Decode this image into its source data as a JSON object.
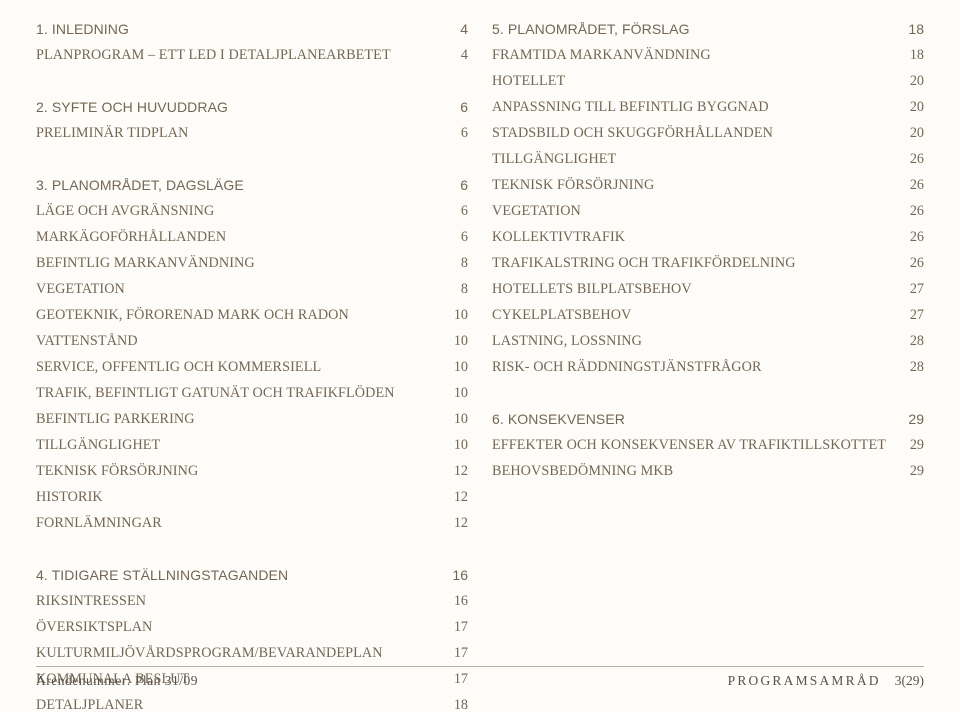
{
  "left_column": [
    {
      "type": "head",
      "label": "1. INLEDNING",
      "page": "4"
    },
    {
      "type": "entry",
      "label": "PLANPROGRAM – ETT LED I DETALJPLANEARBETET",
      "page": "4"
    },
    {
      "type": "gap"
    },
    {
      "type": "head",
      "label": "2. SYFTE OCH HUVUDDRAG",
      "page": "6"
    },
    {
      "type": "entry",
      "label": "PRELIMINÄR TIDPLAN",
      "page": "6"
    },
    {
      "type": "gap"
    },
    {
      "type": "head",
      "label": "3. PLANOMRÅDET, DAGSLÄGE",
      "page": "6"
    },
    {
      "type": "entry",
      "label": "LÄGE OCH AVGRÄNSNING",
      "page": "6"
    },
    {
      "type": "entry",
      "label": "MARKÄGOFÖRHÅLLANDEN",
      "page": "6"
    },
    {
      "type": "entry",
      "label": "BEFINTLIG MARKANVÄNDNING",
      "page": "8"
    },
    {
      "type": "entry",
      "label": "VEGETATION",
      "page": "8"
    },
    {
      "type": "entry",
      "label": "GEOTEKNIK, FÖRORENAD MARK OCH RADON",
      "page": "10"
    },
    {
      "type": "entry",
      "label": "VATTENSTÅND",
      "page": "10"
    },
    {
      "type": "entry",
      "label": "SERVICE, OFFENTLIG OCH KOMMERSIELL",
      "page": "10"
    },
    {
      "type": "entry",
      "label": "TRAFIK, BEFINTLIGT GATUNÄT OCH TRAFIKFLÖDEN",
      "page": "10"
    },
    {
      "type": "entry",
      "label": "BEFINTLIG PARKERING",
      "page": "10"
    },
    {
      "type": "entry",
      "label": "TILLGÄNGLIGHET",
      "page": "10"
    },
    {
      "type": "entry",
      "label": "TEKNISK FÖRSÖRJNING",
      "page": "12"
    },
    {
      "type": "entry",
      "label": "HISTORIK",
      "page": "12"
    },
    {
      "type": "entry",
      "label": "FORNLÄMNINGAR",
      "page": "12"
    },
    {
      "type": "gap"
    },
    {
      "type": "head",
      "label": "4. TIDIGARE STÄLLNINGSTAGANDEN",
      "page": "16"
    },
    {
      "type": "entry",
      "label": "RIKSINTRESSEN",
      "page": "16"
    },
    {
      "type": "entry",
      "label": "ÖVERSIKTSPLAN",
      "page": "17"
    },
    {
      "type": "entry",
      "label": "KULTURMILJÖVÅRDSPROGRAM/BEVARANDEPLAN",
      "page": "17"
    },
    {
      "type": "entry",
      "label": "KOMMUNALA BESLUT",
      "page": "17"
    },
    {
      "type": "entry",
      "label": "DETALJPLANER",
      "page": "18"
    }
  ],
  "right_column": [
    {
      "type": "head",
      "label": "5. PLANOMRÅDET, FÖRSLAG",
      "page": "18"
    },
    {
      "type": "entry",
      "label": "FRAMTIDA MARKANVÄNDNING",
      "page": "18"
    },
    {
      "type": "entry",
      "label": "HOTELLET",
      "page": "20"
    },
    {
      "type": "entry",
      "label": "ANPASSNING TILL BEFINTLIG BYGGNAD",
      "page": "20"
    },
    {
      "type": "entry",
      "label": "STADSBILD OCH SKUGGFÖRHÅLLANDEN",
      "page": "20"
    },
    {
      "type": "entry",
      "label": "TILLGÄNGLIGHET",
      "page": "26"
    },
    {
      "type": "entry",
      "label": "TEKNISK FÖRSÖRJNING",
      "page": "26"
    },
    {
      "type": "entry",
      "label": "VEGETATION",
      "page": "26"
    },
    {
      "type": "entry",
      "label": "KOLLEKTIVTRAFIK",
      "page": "26"
    },
    {
      "type": "entry",
      "label": "TRAFIKALSTRING OCH TRAFIKFÖRDELNING",
      "page": "26"
    },
    {
      "type": "entry",
      "label": "HOTELLETS BILPLATSBEHOV",
      "page": "27"
    },
    {
      "type": "entry",
      "label": "CYKELPLATSBEHOV",
      "page": "27"
    },
    {
      "type": "entry",
      "label": "LASTNING, LOSSNING",
      "page": "28"
    },
    {
      "type": "entry",
      "label": "RISK- OCH RÄDDNINGSTJÄNSTFRÅGOR",
      "page": "28"
    },
    {
      "type": "gap"
    },
    {
      "type": "head",
      "label": "6. KONSEKVENSER",
      "page": "29"
    },
    {
      "type": "entry",
      "label": "EFFEKTER OCH KONSEKVENSER AV TRAFIKTILLSKOTTET",
      "page": "29"
    },
    {
      "type": "entry",
      "label": "BEHOVSBEDÖMNING MKB",
      "page": "29"
    }
  ],
  "footer": {
    "left": "Ärendenummer: Plan 31/09",
    "right_label": "PROGRAMSAMRÅD",
    "page_current": "3",
    "page_total": "29"
  }
}
